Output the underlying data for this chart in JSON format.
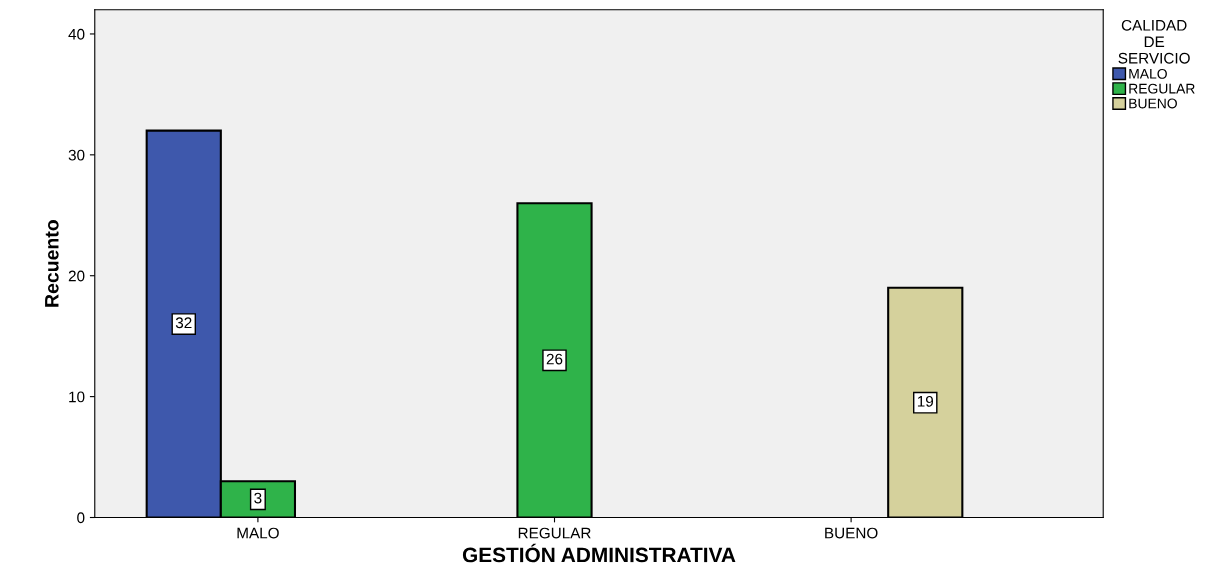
{
  "chart_data": {
    "type": "bar",
    "xlabel": "GESTIÓN ADMINISTRATIVA",
    "ylabel": "Recuento",
    "legend_title": "CALIDAD DE SERVICIO",
    "categories": [
      "MALO",
      "REGULAR",
      "BUENO"
    ],
    "series": [
      {
        "name": "MALO",
        "color": "#3e58ac",
        "values": [
          32,
          null,
          null
        ]
      },
      {
        "name": "REGULAR",
        "color": "#2fb34a",
        "values": [
          3,
          26,
          null
        ]
      },
      {
        "name": "BUENO",
        "color": "#d5d19c",
        "values": [
          null,
          null,
          19
        ]
      }
    ],
    "ylim": [
      0,
      42
    ],
    "yticks": [
      0,
      10,
      20,
      30,
      40
    ],
    "grid": false,
    "legend": "top right",
    "data_labels": true
  }
}
